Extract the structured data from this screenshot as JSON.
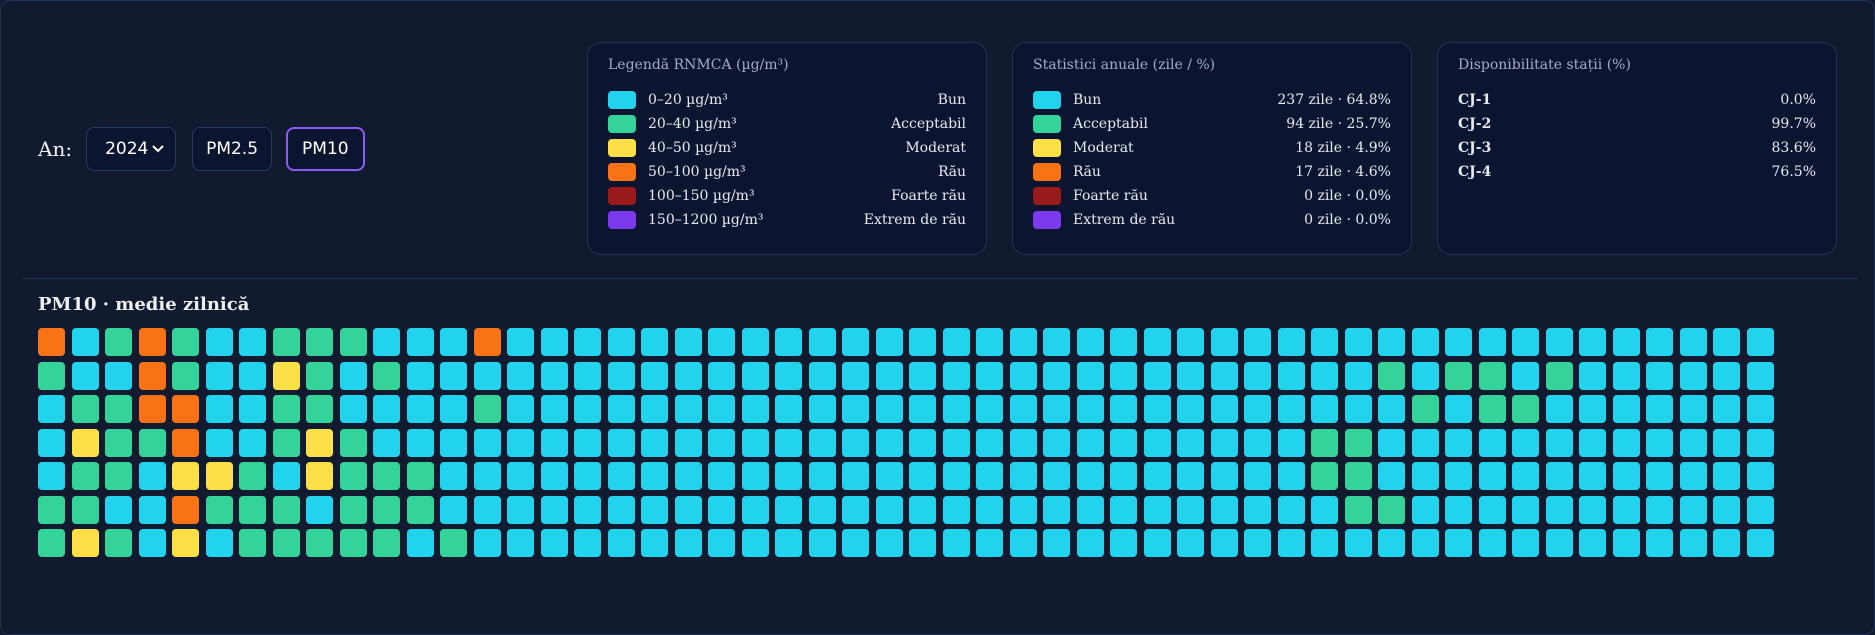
{
  "controls": {
    "year_label": "An:",
    "year_value": "2024",
    "pollutant_buttons": [
      "PM2.5",
      "PM10"
    ],
    "active_pollutant": "PM10"
  },
  "legend": {
    "title": "Legendă RNMCA (µg/m³)",
    "items": [
      {
        "range": "0–20 µg/m³",
        "label": "Bun",
        "color": "#22d3ee"
      },
      {
        "range": "20–40 µg/m³",
        "label": "Acceptabil",
        "color": "#34d399"
      },
      {
        "range": "40–50 µg/m³",
        "label": "Moderat",
        "color": "#fde047"
      },
      {
        "range": "50–100 µg/m³",
        "label": "Rău",
        "color": "#f97316"
      },
      {
        "range": "100–150 µg/m³",
        "label": "Foarte rău",
        "color": "#991b1b"
      },
      {
        "range": "150–1200 µg/m³",
        "label": "Extrem de rău",
        "color": "#7c3aed"
      }
    ]
  },
  "stats": {
    "title": "Statistici anuale (zile / %)",
    "items": [
      {
        "label": "Bun",
        "value": "237 zile · 64.8%",
        "color": "#22d3ee"
      },
      {
        "label": "Acceptabil",
        "value": "94 zile · 25.7%",
        "color": "#34d399"
      },
      {
        "label": "Moderat",
        "value": "18 zile · 4.9%",
        "color": "#fde047"
      },
      {
        "label": "Rău",
        "value": "17 zile · 4.6%",
        "color": "#f97316"
      },
      {
        "label": "Foarte rău",
        "value": "0 zile · 0.0%",
        "color": "#991b1b"
      },
      {
        "label": "Extrem de rău",
        "value": "0 zile · 0.0%",
        "color": "#7c3aed"
      }
    ]
  },
  "availability": {
    "title": "Disponibilitate stații (%)",
    "stations": [
      {
        "name": "CJ-1",
        "value": "0.0%"
      },
      {
        "name": "CJ-2",
        "value": "99.7%"
      },
      {
        "name": "CJ-3",
        "value": "83.6%"
      },
      {
        "name": "CJ-4",
        "value": "76.5%"
      }
    ]
  },
  "heatmap": {
    "title": "PM10 · medie zilnică",
    "category_colors": {
      "B": "#22d3ee",
      "A": "#34d399",
      "M": "#fde047",
      "R": "#f97316"
    },
    "rows": [
      "RBARABBAAABBBRBBBBBBBBBBBBBBBBBBBBBBBBBBBBBBBBBBBBBBBBBBBBBBBBBBBBBBBBBBBBBBBBBBBBBBBBB",
      "ABBRABBMABABBBBBBBBBBBBBBBBBBBBBBBBBBBBBABAABABBBBBBBBBBBBBBBBBBBBBBBBBBBBBBBBBBBBBBBBBBB",
      "BAARRBBAABBBBABBBBBBBBBBBBBBBBBBBBBBBBBBBABAABBBBBBBBBBBBBBBBBBBBBBBBBBBBBBBBBBBBBBBBBBBBB",
      "BMAARBBAMABBBBBBBBBBBBBBBBBBBBBBBBBBBBAABBBBBBBBBBBBBBBBBBBBBBBBBBBBBBBBBBBBBBBBBBBBBBBBBBB",
      "BAABMMABMAAABBBBBBBBBBBBBBBBBBBBBBBBBBAABBBBBBBBBBBBBBBBBBBBBBBBBBBBBBBBBBBBBBBBBBBBBBBBBBB",
      "AABBRAAABAAABBBBBBBBBBBBBBBBBBBBBBBBBBBAABBBBBBBBBBBBBBBBBBBBBBBBBBBBBBBBBBBBBBBBBBBBBBBBBBB",
      "AMABMBAAAAABABBBBBBBBBBBBBBBBBBBBBBBBBBBBBBBBBBBBBBBBBBBBBBBBBBBBBBBBBBBBBBBBBBBBBBBBBBBBBBBB"
    ]
  }
}
